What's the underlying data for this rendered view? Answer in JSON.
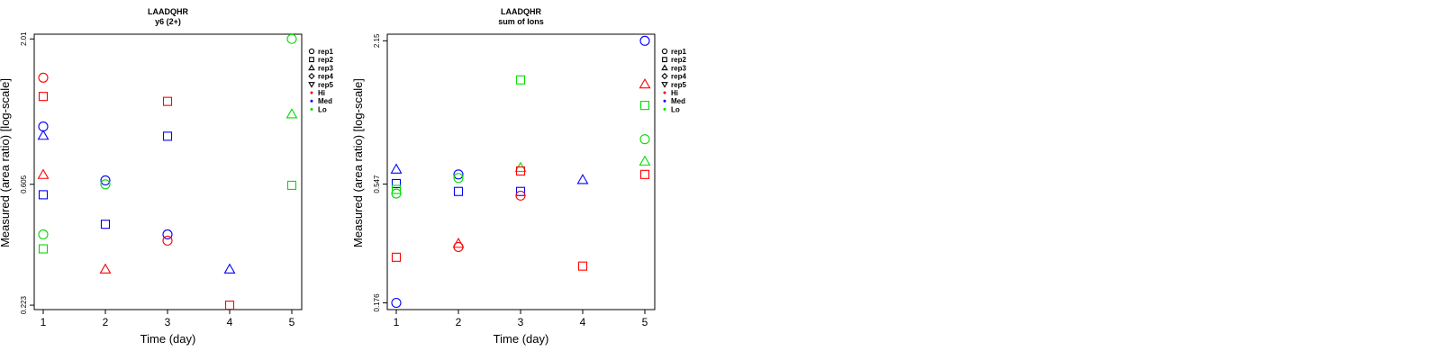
{
  "chart_data": [
    {
      "type": "scatter",
      "title": "LAADQHR",
      "subtitle": "y6 (2+)",
      "xlabel": "Time (day)",
      "ylabel": "Measured (area ratio) [log-scale]",
      "log_y": true,
      "xlim": [
        0.8,
        5.2
      ],
      "ylim": [
        0.215,
        2.09
      ],
      "x_ticks": [
        1,
        2,
        3,
        4,
        5
      ],
      "y_ticks": [
        "0.223",
        "0.605",
        "2.01"
      ],
      "y_tick_values": [
        0.223,
        0.605,
        2.01
      ],
      "points": [
        {
          "x": 1,
          "y": 1.46,
          "shape": "circle",
          "group": "Hi"
        },
        {
          "x": 1,
          "y": 1.25,
          "shape": "square",
          "group": "Hi"
        },
        {
          "x": 1,
          "y": 0.655,
          "shape": "triangle",
          "group": "Hi"
        },
        {
          "x": 1,
          "y": 0.975,
          "shape": "circle",
          "group": "Med"
        },
        {
          "x": 1,
          "y": 0.905,
          "shape": "triangle",
          "group": "Med"
        },
        {
          "x": 1,
          "y": 0.555,
          "shape": "square",
          "group": "Med"
        },
        {
          "x": 1,
          "y": 0.4,
          "shape": "circle",
          "group": "Lo"
        },
        {
          "x": 1,
          "y": 0.355,
          "shape": "square",
          "group": "Lo"
        },
        {
          "x": 2,
          "y": 0.625,
          "shape": "circle",
          "group": "Med"
        },
        {
          "x": 2,
          "y": 0.605,
          "shape": "circle",
          "group": "Lo"
        },
        {
          "x": 2,
          "y": 0.435,
          "shape": "square",
          "group": "Med"
        },
        {
          "x": 2,
          "y": 0.3,
          "shape": "triangle",
          "group": "Hi"
        },
        {
          "x": 3,
          "y": 1.2,
          "shape": "square",
          "group": "Hi"
        },
        {
          "x": 3,
          "y": 0.9,
          "shape": "square",
          "group": "Med"
        },
        {
          "x": 3,
          "y": 0.4,
          "shape": "circle",
          "group": "Med"
        },
        {
          "x": 3,
          "y": 0.38,
          "shape": "circle",
          "group": "Hi"
        },
        {
          "x": 4,
          "y": 0.3,
          "shape": "triangle",
          "group": "Med"
        },
        {
          "x": 4,
          "y": 0.223,
          "shape": "square",
          "group": "Hi"
        },
        {
          "x": 5,
          "y": 2.01,
          "shape": "circle",
          "group": "Lo"
        },
        {
          "x": 5,
          "y": 1.08,
          "shape": "triangle",
          "group": "Lo"
        },
        {
          "x": 5,
          "y": 0.6,
          "shape": "square",
          "group": "Lo"
        }
      ]
    },
    {
      "type": "scatter",
      "title": "LAADQHR",
      "subtitle": "sum of Ions",
      "xlabel": "Time (day)",
      "ylabel": "Measured (area ratio) [log-scale]",
      "log_y": true,
      "xlim": [
        0.8,
        5.2
      ],
      "ylim": [
        0.165,
        2.29
      ],
      "x_ticks": [
        1,
        2,
        3,
        4,
        5
      ],
      "y_ticks": [
        "0.176",
        "0.547",
        "2.15"
      ],
      "y_tick_values": [
        0.176,
        0.547,
        2.15
      ],
      "points": [
        {
          "x": 1,
          "y": 0.63,
          "shape": "triangle",
          "group": "Med"
        },
        {
          "x": 1,
          "y": 0.55,
          "shape": "square",
          "group": "Med"
        },
        {
          "x": 1,
          "y": 0.5,
          "shape": "circle",
          "group": "Lo"
        },
        {
          "x": 1,
          "y": 0.52,
          "shape": "square",
          "group": "Lo"
        },
        {
          "x": 1,
          "y": 0.272,
          "shape": "square",
          "group": "Hi"
        },
        {
          "x": 1,
          "y": 0.176,
          "shape": "circle",
          "group": "Med"
        },
        {
          "x": 2,
          "y": 0.6,
          "shape": "circle",
          "group": "Med"
        },
        {
          "x": 2,
          "y": 0.58,
          "shape": "circle",
          "group": "Lo"
        },
        {
          "x": 2,
          "y": 0.51,
          "shape": "square",
          "group": "Med"
        },
        {
          "x": 2,
          "y": 0.31,
          "shape": "triangle",
          "group": "Hi"
        },
        {
          "x": 2,
          "y": 0.3,
          "shape": "circle",
          "group": "Hi"
        },
        {
          "x": 3,
          "y": 1.48,
          "shape": "square",
          "group": "Lo"
        },
        {
          "x": 3,
          "y": 0.64,
          "shape": "triangle",
          "group": "Lo"
        },
        {
          "x": 3,
          "y": 0.62,
          "shape": "square",
          "group": "Hi"
        },
        {
          "x": 3,
          "y": 0.51,
          "shape": "square",
          "group": "Med"
        },
        {
          "x": 3,
          "y": 0.49,
          "shape": "circle",
          "group": "Hi"
        },
        {
          "x": 4,
          "y": 0.57,
          "shape": "triangle",
          "group": "Med"
        },
        {
          "x": 4,
          "y": 0.25,
          "shape": "square",
          "group": "Hi"
        },
        {
          "x": 5,
          "y": 2.15,
          "shape": "circle",
          "group": "Med"
        },
        {
          "x": 5,
          "y": 1.42,
          "shape": "triangle",
          "group": "Hi"
        },
        {
          "x": 5,
          "y": 1.16,
          "shape": "square",
          "group": "Lo"
        },
        {
          "x": 5,
          "y": 0.84,
          "shape": "circle",
          "group": "Lo"
        },
        {
          "x": 5,
          "y": 0.68,
          "shape": "triangle",
          "group": "Lo"
        },
        {
          "x": 5,
          "y": 0.6,
          "shape": "square",
          "group": "Hi"
        }
      ]
    }
  ],
  "legend": {
    "placement": "right of each panel",
    "shapes": [
      {
        "label": "rep1",
        "shape": "circle"
      },
      {
        "label": "rep2",
        "shape": "square"
      },
      {
        "label": "rep3",
        "shape": "triangle"
      },
      {
        "label": "rep4",
        "shape": "diamond"
      },
      {
        "label": "rep5",
        "shape": "triangle-down"
      }
    ],
    "groups": [
      {
        "label": "Hi",
        "color": "#ff0000"
      },
      {
        "label": "Med",
        "color": "#0000ff"
      },
      {
        "label": "Lo",
        "color": "#00dd00"
      }
    ]
  }
}
